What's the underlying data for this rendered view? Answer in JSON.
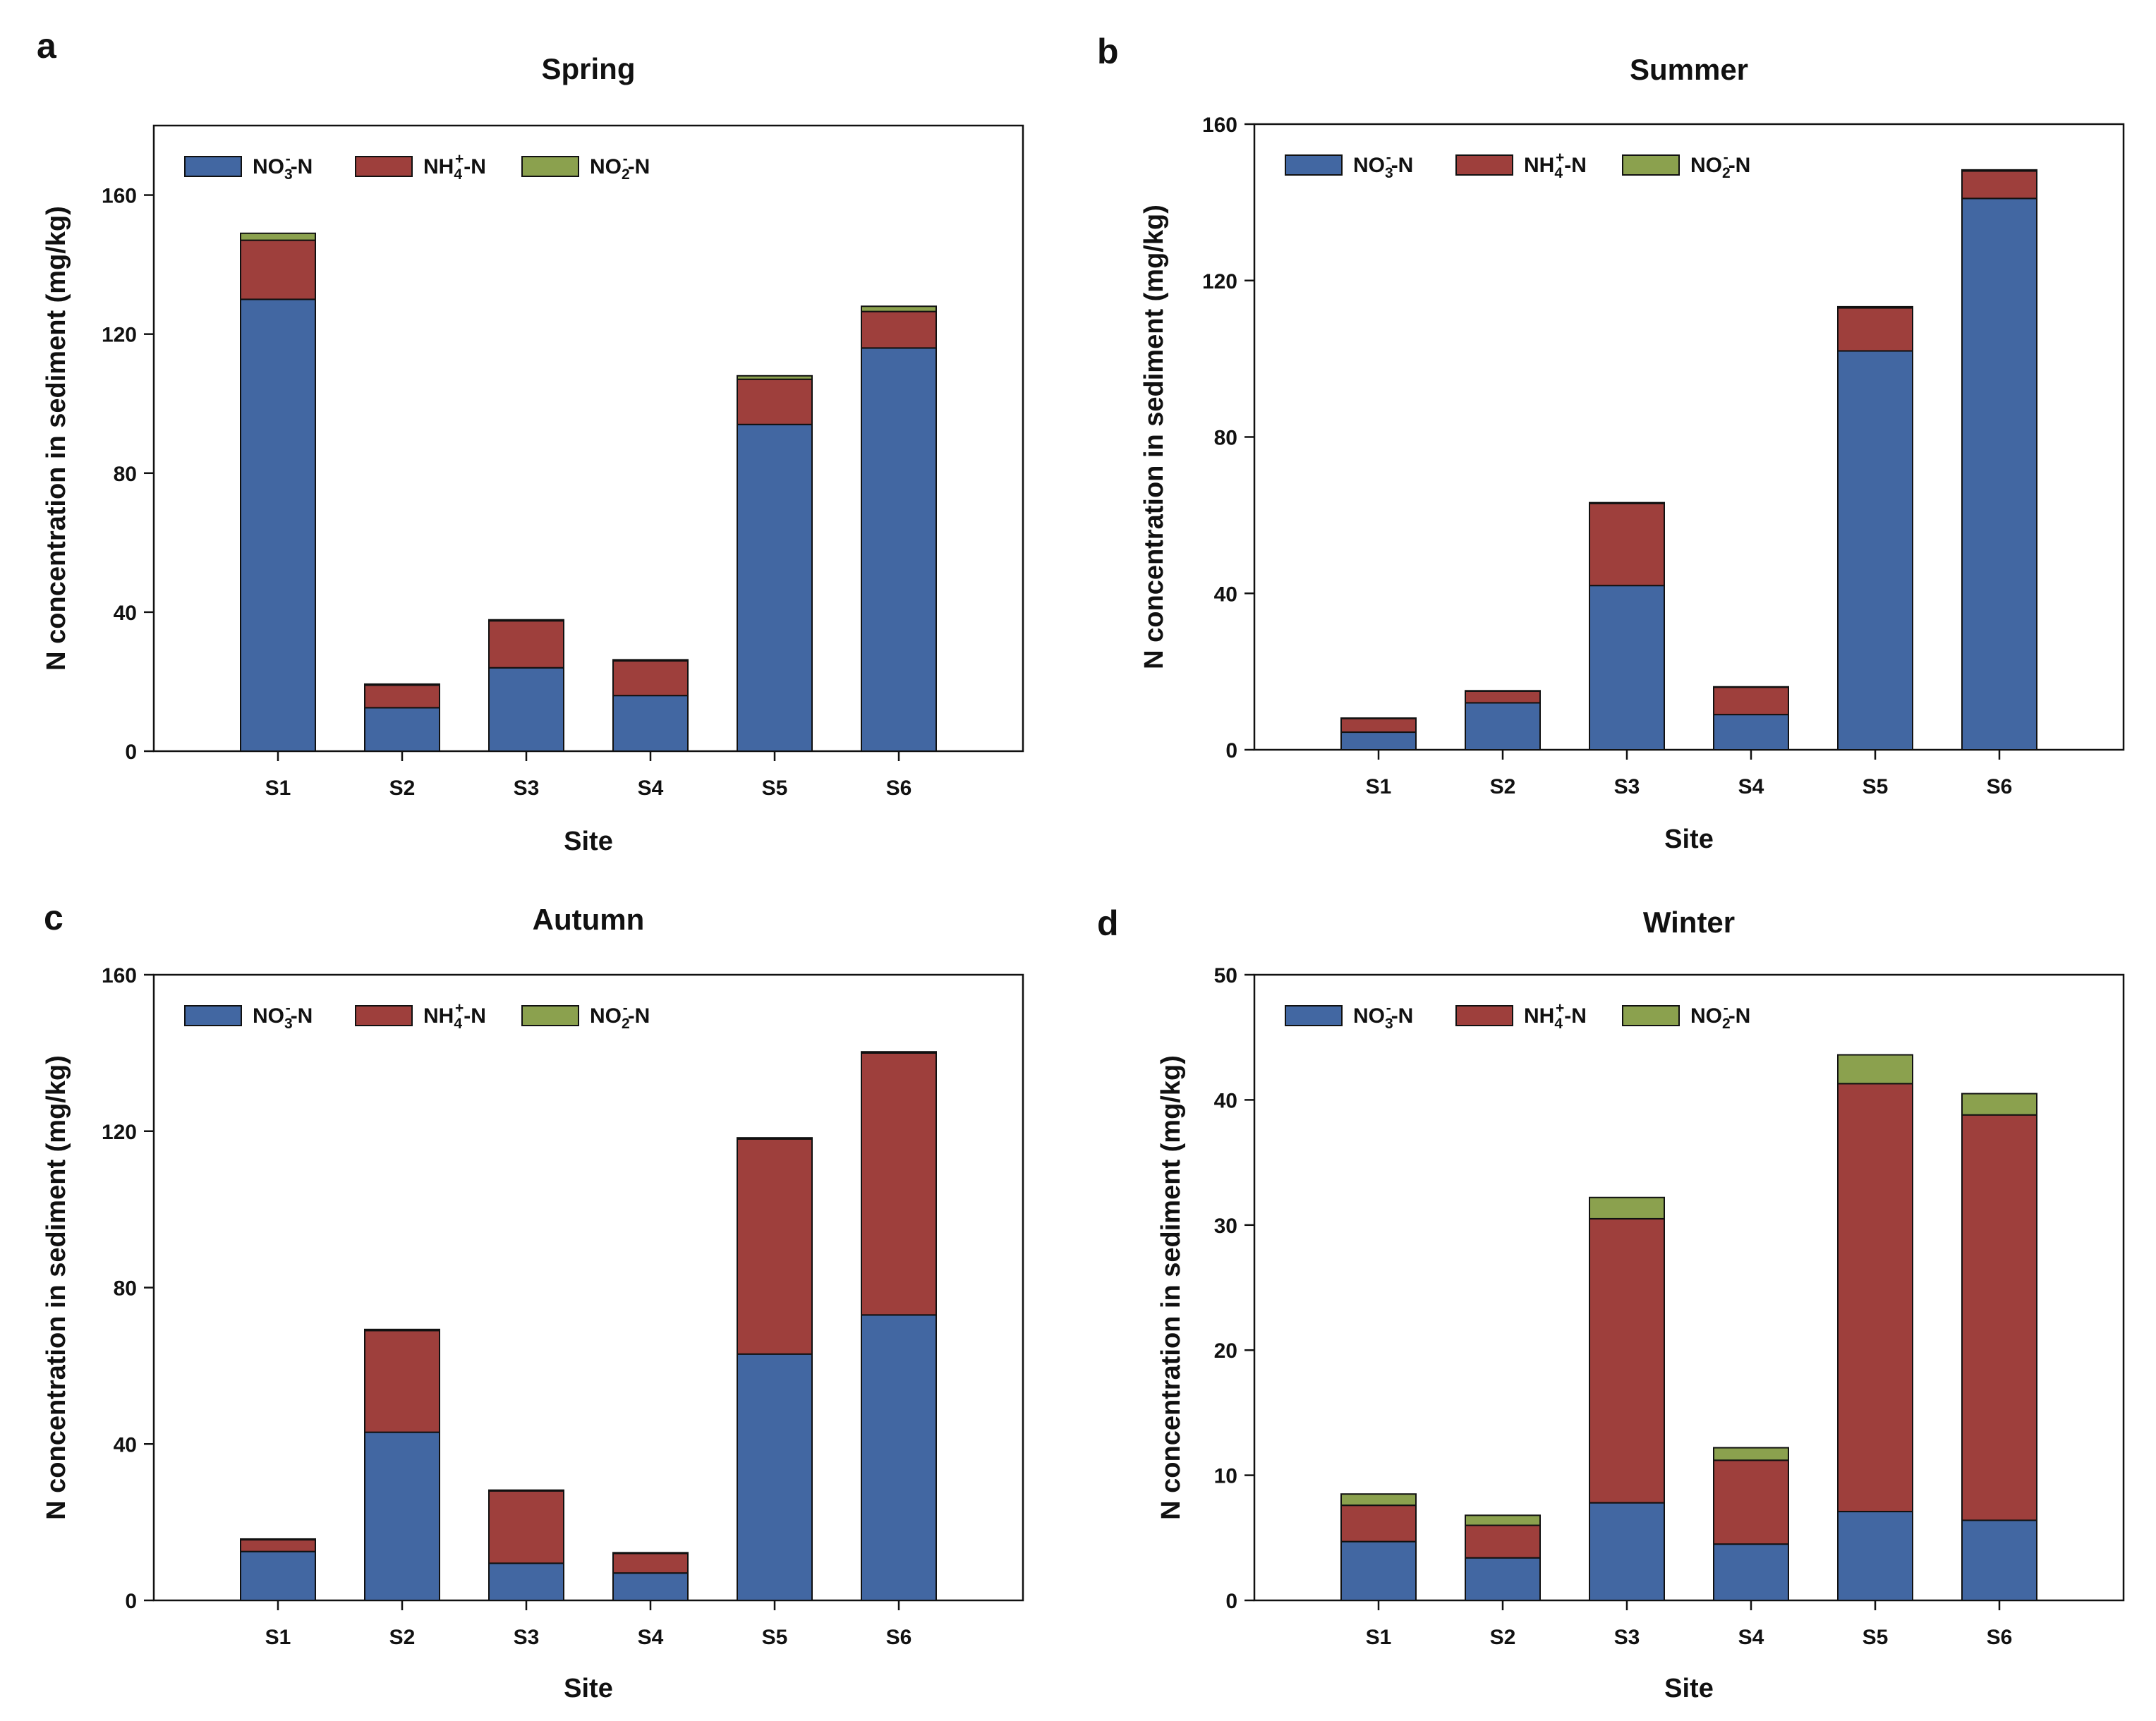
{
  "figure": {
    "legend_sub": {
      "no3_sub": "3",
      "no3_sup": "-",
      "nh4_sub": "4",
      "nh4_sup": "+",
      "no2_sub": "2",
      "no2_sup": "-"
    }
  },
  "chart_data": [
    {
      "type": "bar",
      "stacked": true,
      "panel": "a",
      "title": "Spring",
      "xlabel": "Site",
      "ylabel": "N concentration in sediment (mg/kg)",
      "ylim": [
        0,
        180
      ],
      "yticks": [
        0,
        40,
        80,
        120,
        160
      ],
      "categories": [
        "S1",
        "S2",
        "S3",
        "S4",
        "S5",
        "S6"
      ],
      "legend_position": "top-left",
      "series": [
        {
          "name": "NO3--N",
          "label_base": "NO",
          "label_tail": "-N",
          "color": "#4267a2",
          "values": [
            130,
            12.5,
            24,
            16,
            94,
            116
          ]
        },
        {
          "name": "NH4+-N",
          "label_base": "NH",
          "label_tail": "-N",
          "color": "#9e3f3c",
          "values": [
            17,
            6.5,
            13.5,
            10,
            13,
            10.5
          ]
        },
        {
          "name": "NO2--N",
          "label_base": "NO",
          "label_tail": "-N",
          "color": "#8ba14e",
          "values": [
            2,
            0.3,
            0.3,
            0.3,
            1,
            1.5
          ]
        }
      ]
    },
    {
      "type": "bar",
      "stacked": true,
      "panel": "b",
      "title": "Summer",
      "xlabel": "Site",
      "ylabel": "N concentration in sediment (mg/kg)",
      "ylim": [
        0,
        160
      ],
      "yticks": [
        0,
        40,
        80,
        120,
        160
      ],
      "categories": [
        "S1",
        "S2",
        "S3",
        "S4",
        "S5",
        "S6"
      ],
      "legend_position": "top-left",
      "series": [
        {
          "name": "NO3--N",
          "label_base": "NO",
          "label_tail": "-N",
          "color": "#4267a2",
          "values": [
            4.5,
            12,
            42,
            9,
            102,
            141
          ]
        },
        {
          "name": "NH4+-N",
          "label_base": "NH",
          "label_tail": "-N",
          "color": "#9e3f3c",
          "values": [
            3.5,
            3,
            21,
            7,
            11,
            7
          ]
        },
        {
          "name": "NO2--N",
          "label_base": "NO",
          "label_tail": "-N",
          "color": "#8ba14e",
          "values": [
            0.1,
            0.1,
            0.2,
            0.1,
            0.3,
            0.3
          ]
        }
      ]
    },
    {
      "type": "bar",
      "stacked": true,
      "panel": "c",
      "title": "Autumn",
      "xlabel": "Site",
      "ylabel": "N concentration in sediment (mg/kg)",
      "ylim": [
        0,
        160
      ],
      "yticks": [
        0,
        40,
        80,
        120,
        160
      ],
      "categories": [
        "S1",
        "S2",
        "S3",
        "S4",
        "S5",
        "S6"
      ],
      "legend_position": "top-left",
      "series": [
        {
          "name": "NO3--N",
          "label_base": "NO",
          "label_tail": "-N",
          "color": "#4267a2",
          "values": [
            12.5,
            43,
            9.5,
            7,
            63,
            73
          ]
        },
        {
          "name": "NH4+-N",
          "label_base": "NH",
          "label_tail": "-N",
          "color": "#9e3f3c",
          "values": [
            3,
            26,
            18.5,
            5,
            55,
            67
          ]
        },
        {
          "name": "NO2--N",
          "label_base": "NO",
          "label_tail": "-N",
          "color": "#8ba14e",
          "values": [
            0.2,
            0.3,
            0.2,
            0.2,
            0.3,
            0.3
          ]
        }
      ]
    },
    {
      "type": "bar",
      "stacked": true,
      "panel": "d",
      "title": "Winter",
      "xlabel": "Site",
      "ylabel": "N concentration in sediment (mg/kg)",
      "ylim": [
        0,
        50
      ],
      "yticks": [
        0,
        10,
        20,
        30,
        40,
        50
      ],
      "categories": [
        "S1",
        "S2",
        "S3",
        "S4",
        "S5",
        "S6"
      ],
      "legend_position": "top-left",
      "series": [
        {
          "name": "NO3--N",
          "label_base": "NO",
          "label_tail": "-N",
          "color": "#4267a2",
          "values": [
            4.7,
            3.4,
            7.8,
            4.5,
            7.1,
            6.4
          ]
        },
        {
          "name": "NH4+-N",
          "label_base": "NH",
          "label_tail": "-N",
          "color": "#9e3f3c",
          "values": [
            2.9,
            2.6,
            22.7,
            6.7,
            34.2,
            32.4
          ]
        },
        {
          "name": "NO2--N",
          "label_base": "NO",
          "label_tail": "-N",
          "color": "#8ba14e",
          "values": [
            0.9,
            0.8,
            1.7,
            1.0,
            2.3,
            1.7
          ]
        }
      ]
    }
  ]
}
